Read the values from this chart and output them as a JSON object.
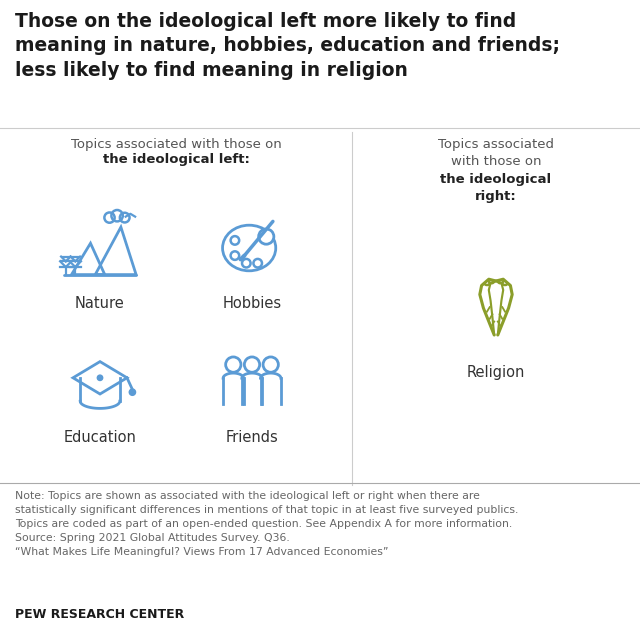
{
  "title": "Those on the ideological left more likely to find\nmeaning in nature, hobbies, education and friends;\nless likely to find meaning in religion",
  "left_header_line1": "Topics associated with those on",
  "left_header_line2": "the ideological left:",
  "right_header_line1": "Topics associated\nwith those on",
  "right_header_line2": "the ideological\nright:",
  "left_topics": [
    "Nature",
    "Hobbies",
    "Education",
    "Friends"
  ],
  "right_topics": [
    "Religion"
  ],
  "note_text": "Note: Topics are shown as associated with the ideological left or right when there are\nstatistically significant differences in mentions of that topic in at least five surveyed publics.\nTopics are coded as part of an open-ended question. See Appendix A for more information.\nSource: Spring 2021 Global Attitudes Survey. Q36.\n“What Makes Life Meaningful? Views From 17 Advanced Economies”",
  "footer": "PEW RESEARCH CENTER",
  "bg_color": "#ffffff",
  "title_color": "#1a1a1a",
  "header_color": "#555555",
  "header_bold_color": "#222222",
  "icon_left_color": "#5b9bd5",
  "icon_right_color": "#8b9e2a",
  "label_color": "#333333",
  "note_color": "#666666",
  "footer_color": "#1a1a1a",
  "divider_color": "#cccccc",
  "title_fontsize": 13.5,
  "header_fontsize": 9.5,
  "label_fontsize": 10.5,
  "note_fontsize": 7.8,
  "footer_fontsize": 9.0
}
